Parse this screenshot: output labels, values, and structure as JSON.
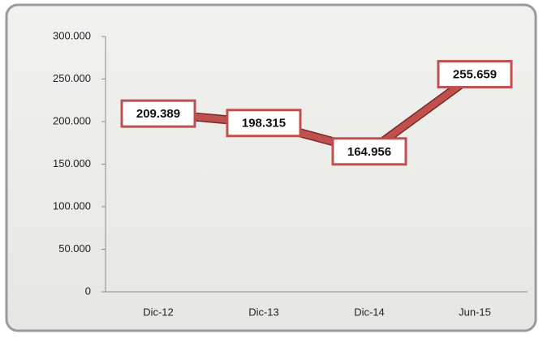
{
  "chart_data": {
    "type": "line",
    "categories": [
      "Dic-12",
      "Dic-13",
      "Dic-14",
      "Jun-15"
    ],
    "values": [
      209389,
      198315,
      164956,
      255659
    ],
    "value_labels": [
      "209.389",
      "198.315",
      "164.956",
      "255.659"
    ],
    "color": "#c0504d",
    "ylim": [
      0,
      300000
    ],
    "yticks": [
      0,
      {
        "value": 50000,
        "label": "50.000"
      },
      {
        "value": 100000,
        "label": "100.000"
      },
      {
        "value": 150000,
        "label": "150.000"
      },
      {
        "value": 200000,
        "label": "200.000"
      },
      {
        "value": 250000,
        "label": "250.000"
      },
      {
        "value": 300000,
        "label": "300.000"
      }
    ],
    "grid": false
  }
}
